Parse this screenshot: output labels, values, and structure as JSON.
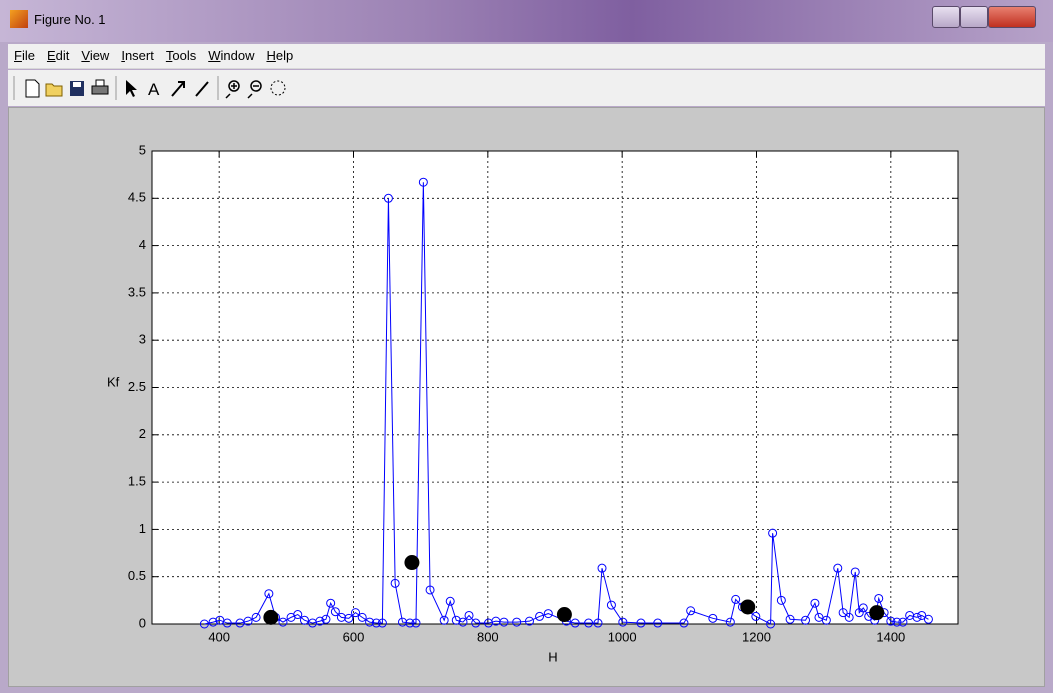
{
  "window": {
    "title": "Figure No. 1"
  },
  "menu": [
    "File",
    "Edit",
    "View",
    "Insert",
    "Tools",
    "Window",
    "Help"
  ],
  "chart_data": {
    "type": "line",
    "xlabel": "H",
    "ylabel": "Kf",
    "xlim": [
      300,
      1500
    ],
    "ylim": [
      0,
      5
    ],
    "xticks": [
      400,
      600,
      800,
      1000,
      1200,
      1400
    ],
    "yticks": [
      0,
      0.5,
      1,
      1.5,
      2,
      2.5,
      3,
      3.5,
      4,
      4.5,
      5
    ],
    "grid": true,
    "series": [
      {
        "color": "#0000ff",
        "marker": "open-circle",
        "line": true,
        "x": [
          378,
          391,
          401,
          412,
          431,
          443,
          455,
          474,
          484,
          495,
          507,
          517,
          527,
          539,
          550,
          559,
          566,
          573,
          582,
          593,
          603,
          613,
          624,
          634,
          643,
          652,
          662,
          673,
          684,
          693,
          704,
          714,
          735,
          744,
          753,
          763,
          772,
          782,
          801,
          812,
          824,
          843,
          862,
          877,
          890,
          917,
          930,
          950,
          964,
          970,
          984,
          1001,
          1028,
          1053,
          1092,
          1102,
          1135,
          1161,
          1169,
          1179,
          1199,
          1221,
          1224,
          1237,
          1250,
          1273,
          1287,
          1293,
          1304,
          1321,
          1329,
          1338,
          1347,
          1353,
          1359,
          1367,
          1376,
          1382,
          1390,
          1400,
          1409,
          1418,
          1428,
          1439,
          1446,
          1456
        ],
        "values": [
          0,
          0.02,
          0.04,
          0.01,
          0.01,
          0.03,
          0.07,
          0.32,
          0.07,
          0.02,
          0.07,
          0.1,
          0.04,
          0.01,
          0.03,
          0.05,
          0.22,
          0.13,
          0.07,
          0.06,
          0.12,
          0.07,
          0.02,
          0.01,
          0.01,
          4.5,
          0.43,
          0.02,
          0.01,
          0.01,
          4.67,
          0.36,
          0.04,
          0.24,
          0.04,
          0.02,
          0.09,
          0.01,
          0.01,
          0.03,
          0.02,
          0.02,
          0.03,
          0.08,
          0.11,
          0.03,
          0.01,
          0.01,
          0.01,
          0.59,
          0.2,
          0.02,
          0.01,
          0.01,
          0.01,
          0.14,
          0.06,
          0.02,
          0.26,
          0.18,
          0.08,
          0,
          0.96,
          0.25,
          0.05,
          0.04,
          0.22,
          0.07,
          0.04,
          0.59,
          0.12,
          0.07,
          0.55,
          0.12,
          0.17,
          0.08,
          0.04,
          0.27,
          0.12,
          0.03,
          0.02,
          0.02,
          0.09,
          0.07,
          0.09,
          0.05
        ]
      },
      {
        "color": "#000000",
        "marker": "filled-circle",
        "line": false,
        "x": [
          477,
          687,
          914,
          1187,
          1379
        ],
        "values": [
          0.07,
          0.65,
          0.1,
          0.18,
          0.12
        ]
      }
    ]
  }
}
